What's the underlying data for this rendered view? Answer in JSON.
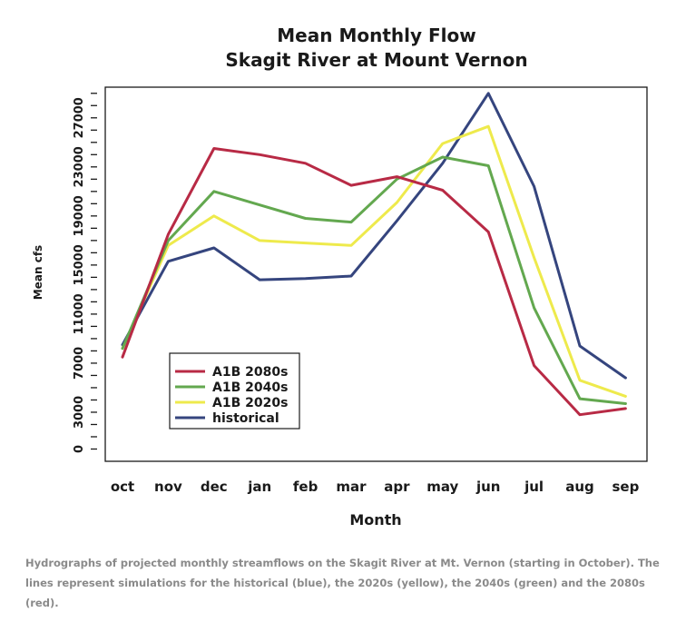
{
  "chart_data": {
    "type": "line",
    "title": [
      "Mean Monthly Flow",
      "Skagit River at Mount Vernon"
    ],
    "xlabel": "Month",
    "ylabel": "Mean cfs",
    "categories": [
      "oct",
      "nov",
      "dec",
      "jan",
      "feb",
      "mar",
      "apr",
      "may",
      "jun",
      "jul",
      "aug",
      "sep"
    ],
    "y_ticks": [
      0,
      3000,
      7000,
      11000,
      15000,
      19000,
      23000,
      27000
    ],
    "y_tick_labels": [
      "0",
      "3000",
      "7000",
      "11000",
      "15000",
      "19000",
      "23000",
      "27000"
    ],
    "ylim": [
      -1000,
      29500
    ],
    "minor_tick_step": 1000,
    "grid": false,
    "legend_position": "bottom-left",
    "series": [
      {
        "name": "A1B 2080s",
        "color": "#b82a45",
        "values": [
          7500,
          17500,
          24500,
          24000,
          23300,
          21500,
          22200,
          21100,
          17700,
          6800,
          2800,
          3300
        ]
      },
      {
        "name": "A1B 2040s",
        "color": "#63a84f",
        "values": [
          8200,
          17000,
          21000,
          19900,
          18800,
          18500,
          22000,
          23800,
          23100,
          11500,
          4100,
          3700
        ]
      },
      {
        "name": "A1B 2020s",
        "color": "#eeea4c",
        "values": [
          8200,
          16600,
          19000,
          17000,
          16800,
          16600,
          20100,
          24900,
          26300,
          15600,
          5600,
          4300
        ]
      },
      {
        "name": "historical",
        "color": "#35457e",
        "values": [
          8500,
          15300,
          16400,
          13800,
          13900,
          14100,
          18600,
          23300,
          29000,
          21400,
          8400,
          5800
        ]
      }
    ]
  },
  "caption": "Hydrographs of projected monthly streamflows on the Skagit River at Mt. Vernon (starting in October). The lines represent simulations for the historical (blue), the 2020s (yellow), the 2040s (green) and the 2080s (red)."
}
